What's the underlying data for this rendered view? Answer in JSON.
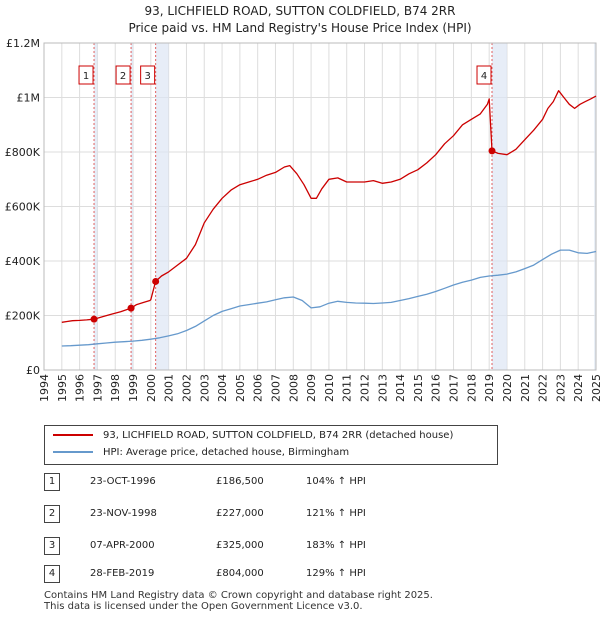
{
  "header": {
    "title_line1": "93, LICHFIELD ROAD, SUTTON COLDFIELD, B74 2RR",
    "title_line2": "Price paid vs. HM Land Registry's House Price Index (HPI)"
  },
  "colors": {
    "property": "#cc0000",
    "hpi": "#6699cc",
    "band": "#dde6f3",
    "grid": "#dddddd"
  },
  "chart_data": {
    "type": "line",
    "xlim": [
      1994,
      2025
    ],
    "ylim": [
      0,
      1200000
    ],
    "x_ticks": [
      "1994",
      "1995",
      "1996",
      "1997",
      "1998",
      "1999",
      "2000",
      "2001",
      "2002",
      "2003",
      "2004",
      "2005",
      "2006",
      "2007",
      "2008",
      "2009",
      "2010",
      "2011",
      "2012",
      "2013",
      "2014",
      "2015",
      "2016",
      "2017",
      "2018",
      "2019",
      "2020",
      "2021",
      "2022",
      "2023",
      "2024",
      "2025"
    ],
    "y_ticks": [
      {
        "value": 0,
        "label": "£0"
      },
      {
        "value": 200000,
        "label": "£200K"
      },
      {
        "value": 400000,
        "label": "£400K"
      },
      {
        "value": 600000,
        "label": "£600K"
      },
      {
        "value": 800000,
        "label": "£800K"
      },
      {
        "value": 1000000,
        "label": "£1M"
      },
      {
        "value": 1200000,
        "label": "£1.2M"
      }
    ],
    "series": [
      {
        "name": "93, LICHFIELD ROAD, SUTTON COLDFIELD, B74 2RR (detached house)",
        "color": "#cc0000",
        "x": [
          1995.0,
          1995.3,
          1995.6,
          1996.0,
          1996.4,
          1996.81,
          1997.3,
          1997.8,
          1998.3,
          1998.89,
          1999.2,
          1999.6,
          1999.95,
          2000.0,
          2000.27,
          2000.6,
          2001.0,
          2001.5,
          2002.0,
          2002.5,
          2003.0,
          2003.5,
          2004.0,
          2004.5,
          2005.0,
          2005.5,
          2006.0,
          2006.5,
          2007.0,
          2007.5,
          2007.8,
          2008.2,
          2008.6,
          2009.0,
          2009.3,
          2009.6,
          2010.0,
          2010.5,
          2011.0,
          2011.5,
          2012.0,
          2012.5,
          2013.0,
          2013.5,
          2014.0,
          2014.5,
          2015.0,
          2015.5,
          2016.0,
          2016.5,
          2017.0,
          2017.5,
          2018.0,
          2018.5,
          2018.9,
          2019.0,
          2019.16,
          2019.5,
          2020.0,
          2020.5,
          2021.0,
          2021.5,
          2022.0,
          2022.3,
          2022.6,
          2022.9,
          2023.2,
          2023.5,
          2023.8,
          2024.1,
          2024.4,
          2024.7,
          2025.0
        ],
        "values": [
          175000,
          178000,
          181000,
          182000,
          184000,
          186500,
          196000,
          205000,
          214000,
          227000,
          240000,
          248000,
          255000,
          258000,
          325000,
          345000,
          360000,
          385000,
          410000,
          460000,
          540000,
          590000,
          630000,
          660000,
          680000,
          690000,
          700000,
          715000,
          725000,
          745000,
          750000,
          720000,
          680000,
          630000,
          630000,
          665000,
          700000,
          705000,
          690000,
          690000,
          690000,
          695000,
          685000,
          690000,
          700000,
          720000,
          735000,
          760000,
          790000,
          830000,
          860000,
          900000,
          920000,
          940000,
          975000,
          995000,
          804000,
          795000,
          790000,
          810000,
          845000,
          880000,
          920000,
          960000,
          985000,
          1025000,
          1000000,
          975000,
          960000,
          975000,
          985000,
          995000,
          1005000
        ]
      },
      {
        "name": "HPI: Average price, detached house, Birmingham",
        "color": "#6699cc",
        "x": [
          1995.0,
          1995.5,
          1996.0,
          1996.5,
          1997.0,
          1997.5,
          1998.0,
          1998.5,
          1999.0,
          1999.5,
          2000.0,
          2000.5,
          2001.0,
          2001.5,
          2002.0,
          2002.5,
          2003.0,
          2003.5,
          2004.0,
          2004.5,
          2005.0,
          2005.5,
          2006.0,
          2006.5,
          2007.0,
          2007.5,
          2008.0,
          2008.5,
          2009.0,
          2009.5,
          2010.0,
          2010.5,
          2011.0,
          2011.5,
          2012.0,
          2012.5,
          2013.0,
          2013.5,
          2014.0,
          2014.5,
          2015.0,
          2015.5,
          2016.0,
          2016.5,
          2017.0,
          2017.5,
          2018.0,
          2018.5,
          2019.0,
          2019.5,
          2020.0,
          2020.5,
          2021.0,
          2021.5,
          2022.0,
          2022.5,
          2023.0,
          2023.5,
          2024.0,
          2024.5,
          2025.0
        ],
        "values": [
          88000,
          89000,
          91000,
          93000,
          96000,
          99000,
          102000,
          104000,
          106000,
          109000,
          113000,
          118000,
          125000,
          133000,
          145000,
          160000,
          180000,
          200000,
          215000,
          225000,
          235000,
          240000,
          245000,
          250000,
          258000,
          265000,
          268000,
          255000,
          228000,
          232000,
          245000,
          252000,
          248000,
          246000,
          245000,
          244000,
          246000,
          248000,
          255000,
          262000,
          270000,
          278000,
          288000,
          300000,
          312000,
          322000,
          330000,
          340000,
          345000,
          348000,
          352000,
          360000,
          372000,
          385000,
          405000,
          425000,
          440000,
          440000,
          430000,
          428000,
          435000
        ]
      }
    ],
    "sales": [
      {
        "num": "1",
        "x": 1996.81,
        "value": 186500
      },
      {
        "num": "2",
        "x": 1998.89,
        "value": 227000
      },
      {
        "num": "3",
        "x": 2000.27,
        "value": 325000
      },
      {
        "num": "4",
        "x": 2019.16,
        "value": 804000
      }
    ]
  },
  "legend": {
    "property_label": "93, LICHFIELD ROAD, SUTTON COLDFIELD, B74 2RR (detached house)",
    "hpi_label": "HPI: Average price, detached house, Birmingham"
  },
  "transactions": [
    {
      "num": "1",
      "date": "23-OCT-1996",
      "price": "£186,500",
      "hpi": "104% ↑ HPI"
    },
    {
      "num": "2",
      "date": "23-NOV-1998",
      "price": "£227,000",
      "hpi": "121% ↑ HPI"
    },
    {
      "num": "3",
      "date": "07-APR-2000",
      "price": "£325,000",
      "hpi": "183% ↑ HPI"
    },
    {
      "num": "4",
      "date": "28-FEB-2019",
      "price": "£804,000",
      "hpi": "129% ↑ HPI"
    }
  ],
  "footer": {
    "line1": "Contains HM Land Registry data © Crown copyright and database right 2025.",
    "line2": "This data is licensed under the Open Government Licence v3.0."
  }
}
